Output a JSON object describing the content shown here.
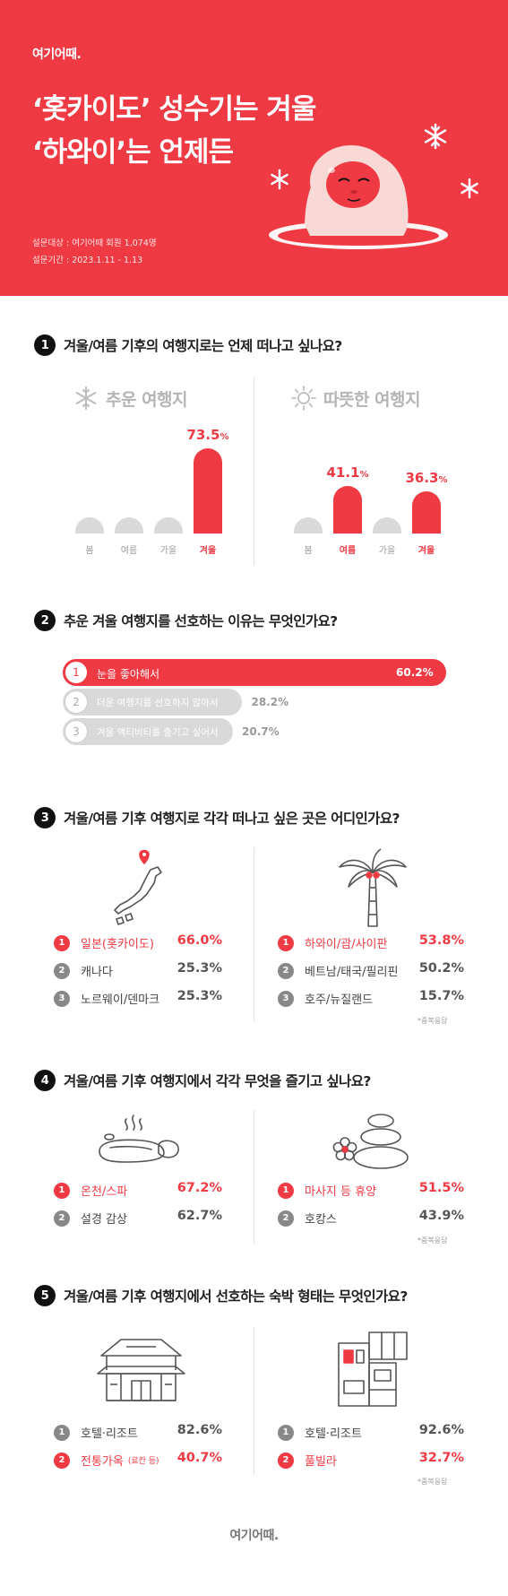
{
  "brand": "여기어때.",
  "hero": {
    "title_line1": "‘홋카이도’ 성수기는 겨울",
    "title_line2": "‘하와이’는 언제든",
    "survey_target": "설문대상 : 여기어때 회원 1,074명",
    "survey_period": "설문기간 : 2023.1.11 - 1.13"
  },
  "colors": {
    "accent": "#ef3a44",
    "gray_bar": "#d9d9d9",
    "dark": "#111111"
  },
  "chart_data": [
    {
      "type": "bar",
      "question_no": "1",
      "title": "겨울/여름 기후의 여행지로는 언제 떠나고 싶나요?",
      "panels": [
        {
          "name": "추운 여행지",
          "icon": "snowflake-icon",
          "categories": [
            "봄",
            "여름",
            "가을",
            "겨울"
          ],
          "values": [
            12,
            9,
            6,
            73.5
          ],
          "labels": [
            "",
            "",
            "",
            "73.5%"
          ],
          "highlight": [
            false,
            false,
            false,
            true
          ]
        },
        {
          "name": "따뜻한 여행지",
          "icon": "sun-icon",
          "categories": [
            "봄",
            "여름",
            "가을",
            "겨울"
          ],
          "values": [
            13,
            41.1,
            9,
            36.3
          ],
          "labels": [
            "",
            "41.1%",
            "",
            "36.3%"
          ],
          "highlight": [
            false,
            true,
            false,
            true
          ]
        }
      ]
    },
    {
      "type": "bar",
      "question_no": "2",
      "title": "추운 겨울 여행지를 선호하는 이유는 무엇인가요?",
      "categories": [
        "눈을 좋아해서",
        "더운 여행지를 선호하지 않아서",
        "겨울 액티비티를 즐기고 싶어서"
      ],
      "values": [
        60.2,
        28.2,
        20.7
      ],
      "labels": [
        "60.2%",
        "28.2%",
        "20.7%"
      ]
    },
    {
      "type": "table",
      "question_no": "3",
      "title": "겨울/여름 기후 여행지로 각각 떠나고 싶은 곳은 어디인가요?",
      "left": {
        "icon": "japan-map-pin-icon",
        "items": [
          {
            "rank": "1",
            "name": "일본(홋카이도)",
            "value": "66.0%"
          },
          {
            "rank": "2",
            "name": "캐나다",
            "value": "25.3%"
          },
          {
            "rank": "3",
            "name": "노르웨이/덴마크",
            "value": "25.3%"
          }
        ]
      },
      "right": {
        "icon": "palm-tree-icon",
        "items": [
          {
            "rank": "1",
            "name": "하와이/괌/사이판",
            "value": "53.8%"
          },
          {
            "rank": "2",
            "name": "베트남/태국/필리핀",
            "value": "50.2%"
          },
          {
            "rank": "3",
            "name": "호주/뉴질랜드",
            "value": "15.7%"
          }
        ],
        "note": "*중복응답"
      }
    },
    {
      "type": "table",
      "question_no": "4",
      "title": "겨울/여름 기후 여행지에서 각각 무엇을 즐기고 싶나요?",
      "left": {
        "icon": "hot-spring-icon",
        "items": [
          {
            "rank": "1",
            "name": "온천/스파",
            "value": "67.2%"
          },
          {
            "rank": "2",
            "name": "설경 감상",
            "value": "62.7%"
          }
        ]
      },
      "right": {
        "icon": "spa-stones-icon",
        "items": [
          {
            "rank": "1",
            "name": "마사지 등 휴양",
            "value": "51.5%"
          },
          {
            "rank": "2",
            "name": "호캉스",
            "value": "43.9%"
          }
        ],
        "note": "*중복응답"
      }
    },
    {
      "type": "table",
      "question_no": "5",
      "title": "겨울/여름 기후 여행지에서 선호하는 숙박 형태는 무엇인가요?",
      "left": {
        "icon": "traditional-house-icon",
        "items": [
          {
            "rank": "1",
            "name": "호텔·리조트",
            "value": "82.6%"
          },
          {
            "rank": "2",
            "name": "전통가옥",
            "sub": "(료칸 등)",
            "value": "40.7%"
          }
        ]
      },
      "right": {
        "icon": "villa-icon",
        "items": [
          {
            "rank": "1",
            "name": "호텔·리조트",
            "value": "92.6%"
          },
          {
            "rank": "2",
            "name": "풀빌라",
            "value": "32.7%"
          }
        ],
        "note": "*중복응답"
      }
    }
  ]
}
